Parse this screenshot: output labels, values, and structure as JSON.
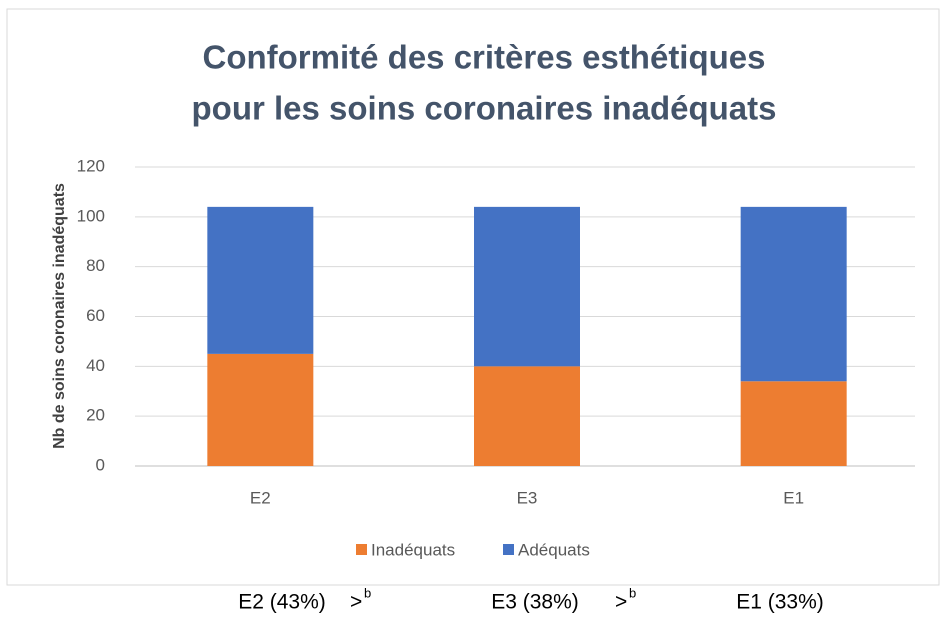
{
  "chart_data": {
    "type": "stacked_bar",
    "title": [
      "Conformité des critères esthétiques",
      "pour les soins coronaires inadéquats"
    ],
    "y_label": "Nb de soins coronaires inadéquats",
    "categories": [
      "E2",
      "E3",
      "E1"
    ],
    "series": [
      {
        "name": "Inadéquats",
        "color": "#ed7d31",
        "values": [
          45,
          40,
          34
        ]
      },
      {
        "name": "Adéquats",
        "color": "#4472c4",
        "values": [
          59,
          64,
          70
        ]
      }
    ],
    "ylim": [
      0,
      120
    ],
    "yticks": [
      0,
      20,
      40,
      60,
      80,
      100,
      120
    ],
    "grid": true,
    "legend": "bottom"
  },
  "comparison": {
    "items": [
      "E2 (43%)",
      "E3 (38%)",
      "E1 (33%)"
    ],
    "symbol": ">",
    "superscript": "b"
  }
}
